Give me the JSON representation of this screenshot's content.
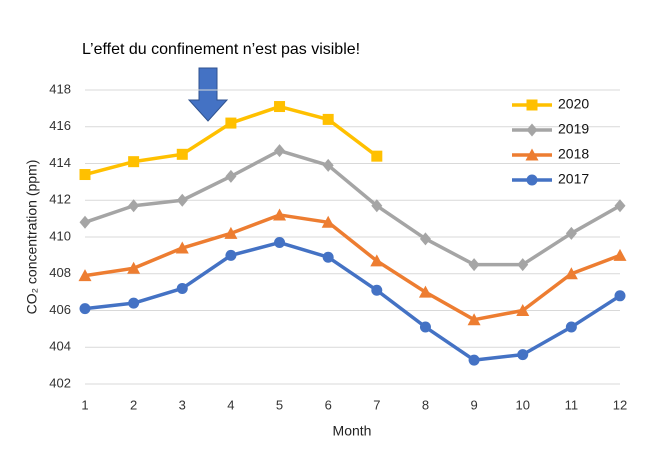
{
  "chart_data": {
    "type": "line",
    "annotation": "L’effet du confinement n’est pas visible!",
    "x_label": "Month",
    "y_label": "CO₂ concentration (ppm)",
    "x": [
      1,
      2,
      3,
      4,
      5,
      6,
      7,
      8,
      9,
      10,
      11,
      12
    ],
    "xlim": [
      1,
      12
    ],
    "xticks": [
      1,
      2,
      3,
      4,
      5,
      6,
      7,
      8,
      9,
      10,
      11,
      12
    ],
    "ylim": [
      402,
      418
    ],
    "yticks": [
      402,
      404,
      406,
      408,
      410,
      412,
      414,
      416,
      418
    ],
    "grid": true,
    "legend": "upper right",
    "series": [
      {
        "name": "2020",
        "color": "#FFC000",
        "marker": "square",
        "values": [
          413.4,
          414.1,
          414.5,
          416.2,
          417.1,
          416.4,
          414.4,
          null,
          null,
          null,
          null,
          null
        ]
      },
      {
        "name": "2019",
        "color": "#A5A5A5",
        "marker": "diamond",
        "values": [
          410.8,
          411.7,
          412.0,
          413.3,
          414.7,
          413.9,
          411.7,
          409.9,
          408.5,
          408.5,
          410.2,
          411.7
        ]
      },
      {
        "name": "2018",
        "color": "#ED7D31",
        "marker": "triangle",
        "values": [
          407.9,
          408.3,
          409.4,
          410.2,
          411.2,
          410.8,
          408.7,
          407.0,
          405.5,
          406.0,
          408.0,
          409.0
        ]
      },
      {
        "name": "2017",
        "color": "#4472C4",
        "marker": "circle",
        "values": [
          406.1,
          406.4,
          407.2,
          409.0,
          409.7,
          408.9,
          407.1,
          405.1,
          403.3,
          403.6,
          405.1,
          406.8
        ]
      }
    ]
  }
}
